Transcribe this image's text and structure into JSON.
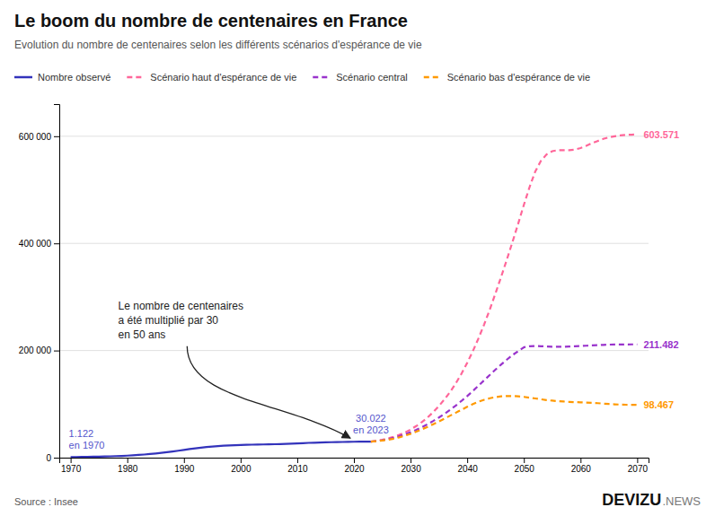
{
  "chart_data": {
    "type": "line",
    "title": "Le boom du nombre de centenaires en France",
    "subtitle": "Evolution du nombre de centenaires selon les différents scénarios d'espérance de vie",
    "source": "Source : Insee",
    "branding": [
      "DEVIZU",
      ".NEWS"
    ],
    "series": [
      {
        "name": "Nombre observé",
        "color": "#3333bb",
        "line_style": "solid",
        "x": [
          1970,
          1971,
          1972,
          1973,
          1974,
          1975,
          1976,
          1977,
          1978,
          1979,
          1980,
          1981,
          1982,
          1983,
          1984,
          1985,
          1986,
          1987,
          1988,
          1989,
          1990,
          1991,
          1992,
          1993,
          1994,
          1995,
          1996,
          1997,
          1998,
          1999,
          2000,
          2001,
          2002,
          2003,
          2004,
          2005,
          2006,
          2007,
          2008,
          2009,
          2010,
          2011,
          2012,
          2013,
          2014,
          2015,
          2016,
          2017,
          2018,
          2019,
          2020,
          2021,
          2022,
          2023
        ],
        "values": [
          1122,
          1250,
          1400,
          1580,
          1760,
          1980,
          2200,
          2500,
          2900,
          3300,
          3800,
          4400,
          5100,
          5900,
          6800,
          7800,
          8900,
          10200,
          11600,
          13000,
          14500,
          16000,
          17400,
          18700,
          19800,
          20800,
          21600,
          22300,
          22900,
          23400,
          23800,
          24100,
          24300,
          24500,
          24700,
          24900,
          25100,
          25400,
          25700,
          26100,
          26600,
          27100,
          27600,
          28000,
          28400,
          28700,
          28900,
          29100,
          29300,
          29500,
          29700,
          29900,
          30000,
          30022
        ]
      },
      {
        "name": "Scénario haut d'espérance de vie",
        "color": "#ff6699",
        "line_style": "dashed",
        "x": [
          2023,
          2024,
          2025,
          2026,
          2027,
          2028,
          2029,
          2030,
          2031,
          2032,
          2033,
          2034,
          2035,
          2036,
          2037,
          2038,
          2039,
          2040,
          2041,
          2042,
          2043,
          2044,
          2045,
          2046,
          2047,
          2048,
          2049,
          2050,
          2051,
          2052,
          2053,
          2054,
          2055,
          2056,
          2057,
          2058,
          2059,
          2060,
          2061,
          2062,
          2063,
          2064,
          2065,
          2066,
          2067,
          2068,
          2069,
          2070
        ],
        "values": [
          30022,
          31500,
          33500,
          36000,
          39000,
          42500,
          47000,
          52500,
          59000,
          66500,
          75000,
          85000,
          96500,
          109000,
          123000,
          139000,
          157000,
          177000,
          199000,
          223000,
          249000,
          277000,
          307000,
          338000,
          370000,
          403000,
          437000,
          472000,
          505000,
          534000,
          554000,
          566000,
          572000,
          574000,
          574000,
          574000,
          575000,
          578000,
          582000,
          587000,
          591000,
          595000,
          598000,
          600000,
          601500,
          602500,
          603000,
          603571
        ]
      },
      {
        "name": "Scénario central",
        "color": "#9933cc",
        "line_style": "dashed",
        "x": [
          2023,
          2024,
          2025,
          2026,
          2027,
          2028,
          2029,
          2030,
          2031,
          2032,
          2033,
          2034,
          2035,
          2036,
          2037,
          2038,
          2039,
          2040,
          2041,
          2042,
          2043,
          2044,
          2045,
          2046,
          2047,
          2048,
          2049,
          2050,
          2051,
          2052,
          2053,
          2054,
          2055,
          2056,
          2057,
          2058,
          2059,
          2060,
          2061,
          2062,
          2063,
          2064,
          2065,
          2066,
          2067,
          2068,
          2069,
          2070
        ],
        "values": [
          30022,
          31000,
          32500,
          34500,
          37000,
          40000,
          43500,
          47500,
          52000,
          57000,
          62500,
          68500,
          75000,
          82000,
          89500,
          97500,
          106000,
          115000,
          124500,
          134500,
          144500,
          154500,
          164500,
          174000,
          183000,
          191500,
          199000,
          206000,
          208000,
          208500,
          208000,
          207500,
          207000,
          207000,
          207000,
          207500,
          208000,
          208500,
          209000,
          209500,
          210000,
          210500,
          211000,
          211200,
          211300,
          211400,
          211450,
          211482
        ]
      },
      {
        "name": "Scénario bas d'espérance de vie",
        "color": "#ff9900",
        "line_style": "dashed",
        "x": [
          2023,
          2024,
          2025,
          2026,
          2027,
          2028,
          2029,
          2030,
          2031,
          2032,
          2033,
          2034,
          2035,
          2036,
          2037,
          2038,
          2039,
          2040,
          2041,
          2042,
          2043,
          2044,
          2045,
          2046,
          2047,
          2048,
          2049,
          2050,
          2051,
          2052,
          2053,
          2054,
          2055,
          2056,
          2057,
          2058,
          2059,
          2060,
          2061,
          2062,
          2063,
          2064,
          2065,
          2066,
          2067,
          2068,
          2069,
          2070
        ],
        "values": [
          30022,
          30800,
          32000,
          33500,
          35500,
          38000,
          41000,
          44500,
          48500,
          53000,
          57500,
          62500,
          67500,
          73000,
          78500,
          84000,
          89500,
          95000,
          100000,
          104500,
          108000,
          111000,
          113000,
          114500,
          115000,
          115000,
          114500,
          113500,
          112000,
          110500,
          109000,
          107500,
          106500,
          105500,
          104800,
          104200,
          103700,
          103300,
          102900,
          102500,
          101800,
          101000,
          100200,
          99600,
          99100,
          98800,
          98600,
          98467
        ]
      }
    ],
    "xlim": [
      1968,
      2072
    ],
    "xticks": [
      1970,
      1980,
      1990,
      2000,
      2010,
      2020,
      2030,
      2040,
      2050,
      2060,
      2070
    ],
    "ylim": [
      0,
      660000
    ],
    "yticks": [
      0,
      {
        "value": 200000,
        "label": "200 000"
      },
      {
        "value": 400000,
        "label": "400 000"
      },
      {
        "value": 600000,
        "label": "600 000"
      }
    ],
    "grid": true,
    "legend": "top",
    "annotations": [
      {
        "text": "1.122\nen 1970",
        "x": 1970,
        "y": 1122,
        "color": "#5555cc"
      },
      {
        "text": "30.022\nen 2023",
        "x": 2023,
        "y": 30022,
        "color": "#5555cc"
      },
      {
        "text": "Le nombre de centenaires\na été multiplié par 30\nen 50 ans",
        "x": 2020,
        "y": 29700,
        "color": "#222222",
        "arrow": true
      },
      {
        "text": "603.571",
        "x": 2070,
        "y": 603571,
        "color": "#ff6699"
      },
      {
        "text": "211.482",
        "x": 2070,
        "y": 211482,
        "color": "#9933cc"
      },
      {
        "text": "98.467",
        "x": 2070,
        "y": 98467,
        "color": "#ff9900"
      }
    ]
  }
}
